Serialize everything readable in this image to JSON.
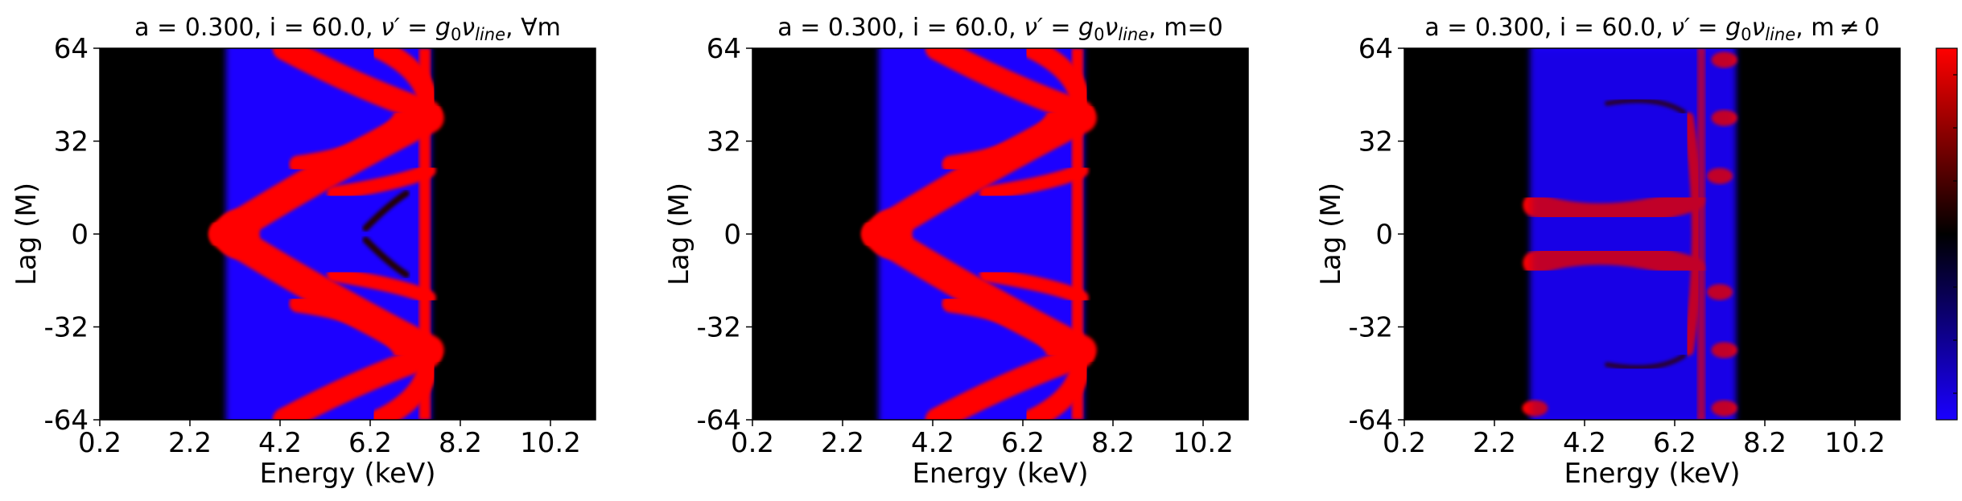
{
  "colorbar": {
    "colors": [
      "#1a00ff",
      "#000000",
      "#ff0000"
    ],
    "ticks": 7
  },
  "chart_data": [
    {
      "type": "heatmap",
      "title": "a = 0.300, i = 60.0, ν' = g₀ν_line, ∀m",
      "title_parts": {
        "pre": "a = 0.300, i = 60.0, ",
        "nu": "ν",
        "eq": "′ = g",
        "sub0": "0",
        "nu2": "ν",
        "sub_line": "line",
        "post": ", ∀m"
      },
      "xlabel": "Energy (keV)",
      "ylabel": "Lag (M)",
      "xlim": [
        0.2,
        11.2
      ],
      "ylim": [
        -64,
        64
      ],
      "xticks": [
        "0.2",
        "2.2",
        "4.2",
        "6.2",
        "8.2",
        "10.2"
      ],
      "xtick_values": [
        0.2,
        2.2,
        4.2,
        6.2,
        8.2,
        10.2
      ],
      "yticks": [
        "64",
        "32",
        "0",
        "-32",
        "-64"
      ],
      "ytick_values": [
        64,
        32,
        0,
        -32,
        -64
      ],
      "band": {
        "emin": 3.0,
        "emax": 7.55
      },
      "variant": "all"
    },
    {
      "type": "heatmap",
      "title": "a = 0.300, i = 60.0, ν' = g₀ν_line, m=0",
      "title_parts": {
        "pre": "a = 0.300, i = 60.0, ",
        "nu": "ν",
        "eq": "′ = g",
        "sub0": "0",
        "nu2": "ν",
        "sub_line": "line",
        "post": ", m=0"
      },
      "xlabel": "Energy (keV)",
      "ylabel": "Lag (M)",
      "xlim": [
        0.2,
        11.2
      ],
      "ylim": [
        -64,
        64
      ],
      "xticks": [
        "0.2",
        "2.2",
        "4.2",
        "6.2",
        "8.2",
        "10.2"
      ],
      "xtick_values": [
        0.2,
        2.2,
        4.2,
        6.2,
        8.2,
        10.2
      ],
      "yticks": [
        "64",
        "32",
        "0",
        "-32",
        "-64"
      ],
      "ytick_values": [
        64,
        32,
        0,
        -32,
        -64
      ],
      "band": {
        "emin": 3.0,
        "emax": 7.55
      },
      "variant": "m0"
    },
    {
      "type": "heatmap",
      "title": "a = 0.300, i = 60.0, ν' = g₀ν_line, m≠0",
      "title_parts": {
        "pre": "a = 0.300, i = 60.0, ",
        "nu": "ν",
        "eq": "′ = g",
        "sub0": "0",
        "nu2": "ν",
        "sub_line": "line",
        "post": ", m ≠ 0"
      },
      "xlabel": "Energy (keV)",
      "ylabel": "Lag (M)",
      "xlim": [
        0.2,
        11.2
      ],
      "ylim": [
        -64,
        64
      ],
      "xticks": [
        "0.2",
        "2.2",
        "4.2",
        "6.2",
        "8.2",
        "10.2"
      ],
      "xtick_values": [
        0.2,
        2.2,
        4.2,
        6.2,
        8.2,
        10.2
      ],
      "yticks": [
        "64",
        "32",
        "0",
        "-32",
        "-64"
      ],
      "ytick_values": [
        64,
        32,
        0,
        -32,
        -64
      ],
      "band": {
        "emin": 3.0,
        "emax": 7.55
      },
      "variant": "mne0"
    }
  ]
}
